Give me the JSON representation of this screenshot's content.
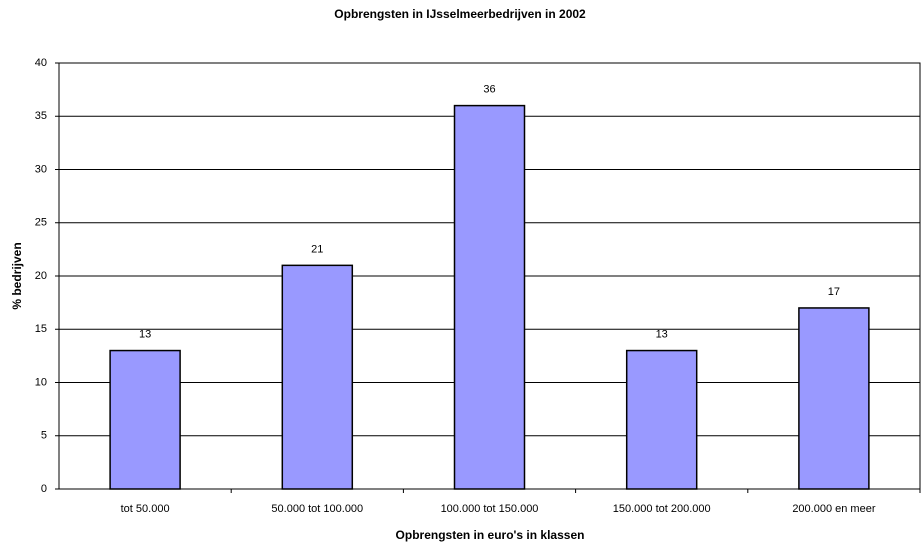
{
  "chart_data": {
    "type": "bar",
    "title": "Opbrengsten in IJsselmeerbedrijven in 2002",
    "x_label": "Opbrengsten in euro's in klassen",
    "y_label": "% bedrijven",
    "categories": [
      "tot 50.000",
      "50.000 tot 100.000",
      "100.000 tot 150.000",
      "150.000 tot 200.000",
      "200.000 en meer"
    ],
    "values": [
      13,
      21,
      36,
      13,
      17
    ],
    "color": "#9999ff",
    "ylim": [
      0,
      40
    ],
    "yticks": [
      0,
      5,
      10,
      15,
      20,
      25,
      30,
      35,
      40
    ],
    "grid": true
  }
}
